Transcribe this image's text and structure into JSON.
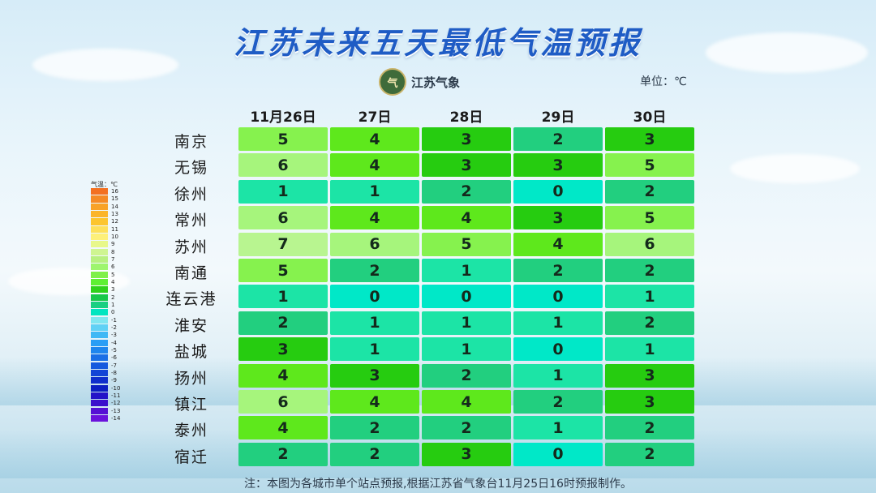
{
  "title": "江苏未来五天最低气温预报",
  "logo": {
    "text": "江苏气象",
    "badge": "气"
  },
  "unit_label": "单位：℃",
  "note": "注：本图为各城市单个站点预报,根据江苏省气象台11月25日16时预报制作。",
  "legend": {
    "title": "气温：℃",
    "labels": [
      "16",
      "15",
      "14",
      "13",
      "12",
      "11",
      "10",
      "9",
      "8",
      "7",
      "6",
      "5",
      "4",
      "3",
      "2",
      "1",
      "0",
      "-1",
      "-2",
      "-3",
      "-4",
      "-5",
      "-6",
      "-7",
      "-8",
      "-9",
      "-10",
      "-11",
      "-12",
      "-13",
      "-14"
    ],
    "colors": [
      "#f37021",
      "#f58a25",
      "#f8a227",
      "#fbb52a",
      "#fcc52e",
      "#fde05a",
      "#fdf07a",
      "#e8f88a",
      "#cff591",
      "#b8f080",
      "#9ef56e",
      "#7ff04a",
      "#5ef032",
      "#2fd21a",
      "#19c84a",
      "#19cf82",
      "#00e5c0",
      "#7fe6f0",
      "#5fd1f5",
      "#3fb8f5",
      "#2a9ef5",
      "#1f86ee",
      "#1a6fe6",
      "#1559de",
      "#1244d6",
      "#0f2fcc",
      "#0c1fc2",
      "#2414c8",
      "#3a0fcc",
      "#5510d4",
      "#6a12dc"
    ]
  },
  "chart_data": {
    "type": "table",
    "title": "江苏未来五天最低气温预报",
    "unit": "℃",
    "columns": [
      "11月26日",
      "27日",
      "28日",
      "29日",
      "30日"
    ],
    "rows": [
      {
        "city": "南京",
        "values": [
          5,
          4,
          3,
          2,
          3
        ]
      },
      {
        "city": "无锡",
        "values": [
          6,
          4,
          3,
          3,
          5
        ]
      },
      {
        "city": "徐州",
        "values": [
          1,
          1,
          2,
          0,
          2
        ]
      },
      {
        "city": "常州",
        "values": [
          6,
          4,
          4,
          3,
          5
        ]
      },
      {
        "city": "苏州",
        "values": [
          7,
          6,
          5,
          4,
          6
        ]
      },
      {
        "city": "南通",
        "values": [
          5,
          2,
          1,
          2,
          2
        ]
      },
      {
        "city": "连云港",
        "values": [
          1,
          0,
          0,
          0,
          1
        ]
      },
      {
        "city": "淮安",
        "values": [
          2,
          1,
          1,
          1,
          2
        ]
      },
      {
        "city": "盐城",
        "values": [
          3,
          1,
          1,
          0,
          1
        ]
      },
      {
        "city": "扬州",
        "values": [
          4,
          3,
          2,
          1,
          3
        ]
      },
      {
        "city": "镇江",
        "values": [
          6,
          4,
          4,
          2,
          3
        ]
      },
      {
        "city": "泰州",
        "values": [
          4,
          2,
          2,
          1,
          2
        ]
      },
      {
        "city": "宿迁",
        "values": [
          2,
          2,
          3,
          0,
          2
        ]
      }
    ],
    "color_scale": {
      "0": "#00e8c8",
      "1": "#1ce4a6",
      "2": "#22cf7f",
      "3": "#26cc10",
      "4": "#5ee81c",
      "5": "#86f24e",
      "6": "#a6f57c",
      "7": "#b8f590"
    }
  }
}
